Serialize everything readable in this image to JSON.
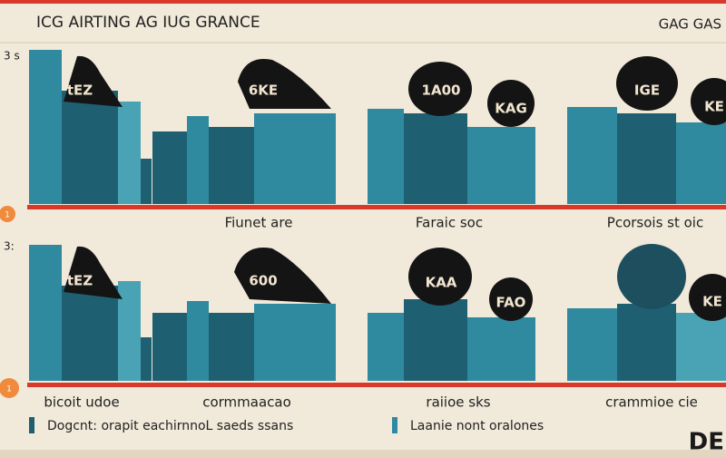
{
  "header": {
    "title": "ICG AIRTING AG IUG GRANCE",
    "corner": "GAG GAS"
  },
  "top_row": {
    "axis_label": "3 s",
    "marker": "1",
    "badges": [
      "tEZ",
      "6KE",
      "1A00",
      "KAG",
      "IGE",
      "KE"
    ],
    "labels": [
      "Fiunet are",
      "Faraic soc",
      "Pcorsois st oic"
    ]
  },
  "bottom_row": {
    "axis_label": "3:",
    "marker": "1",
    "badges": [
      "tEZ",
      "600",
      "KAA",
      "FAO",
      "KE"
    ],
    "labels": [
      "bicoit udoe",
      "cormmaacao",
      "raiioe sks",
      "crammioe cie"
    ]
  },
  "legend": [
    "Dogcnt: orapit eachirnnoL saeds ssans",
    "Laanie  nont oralones"
  ],
  "footer_mark": "DE"
}
